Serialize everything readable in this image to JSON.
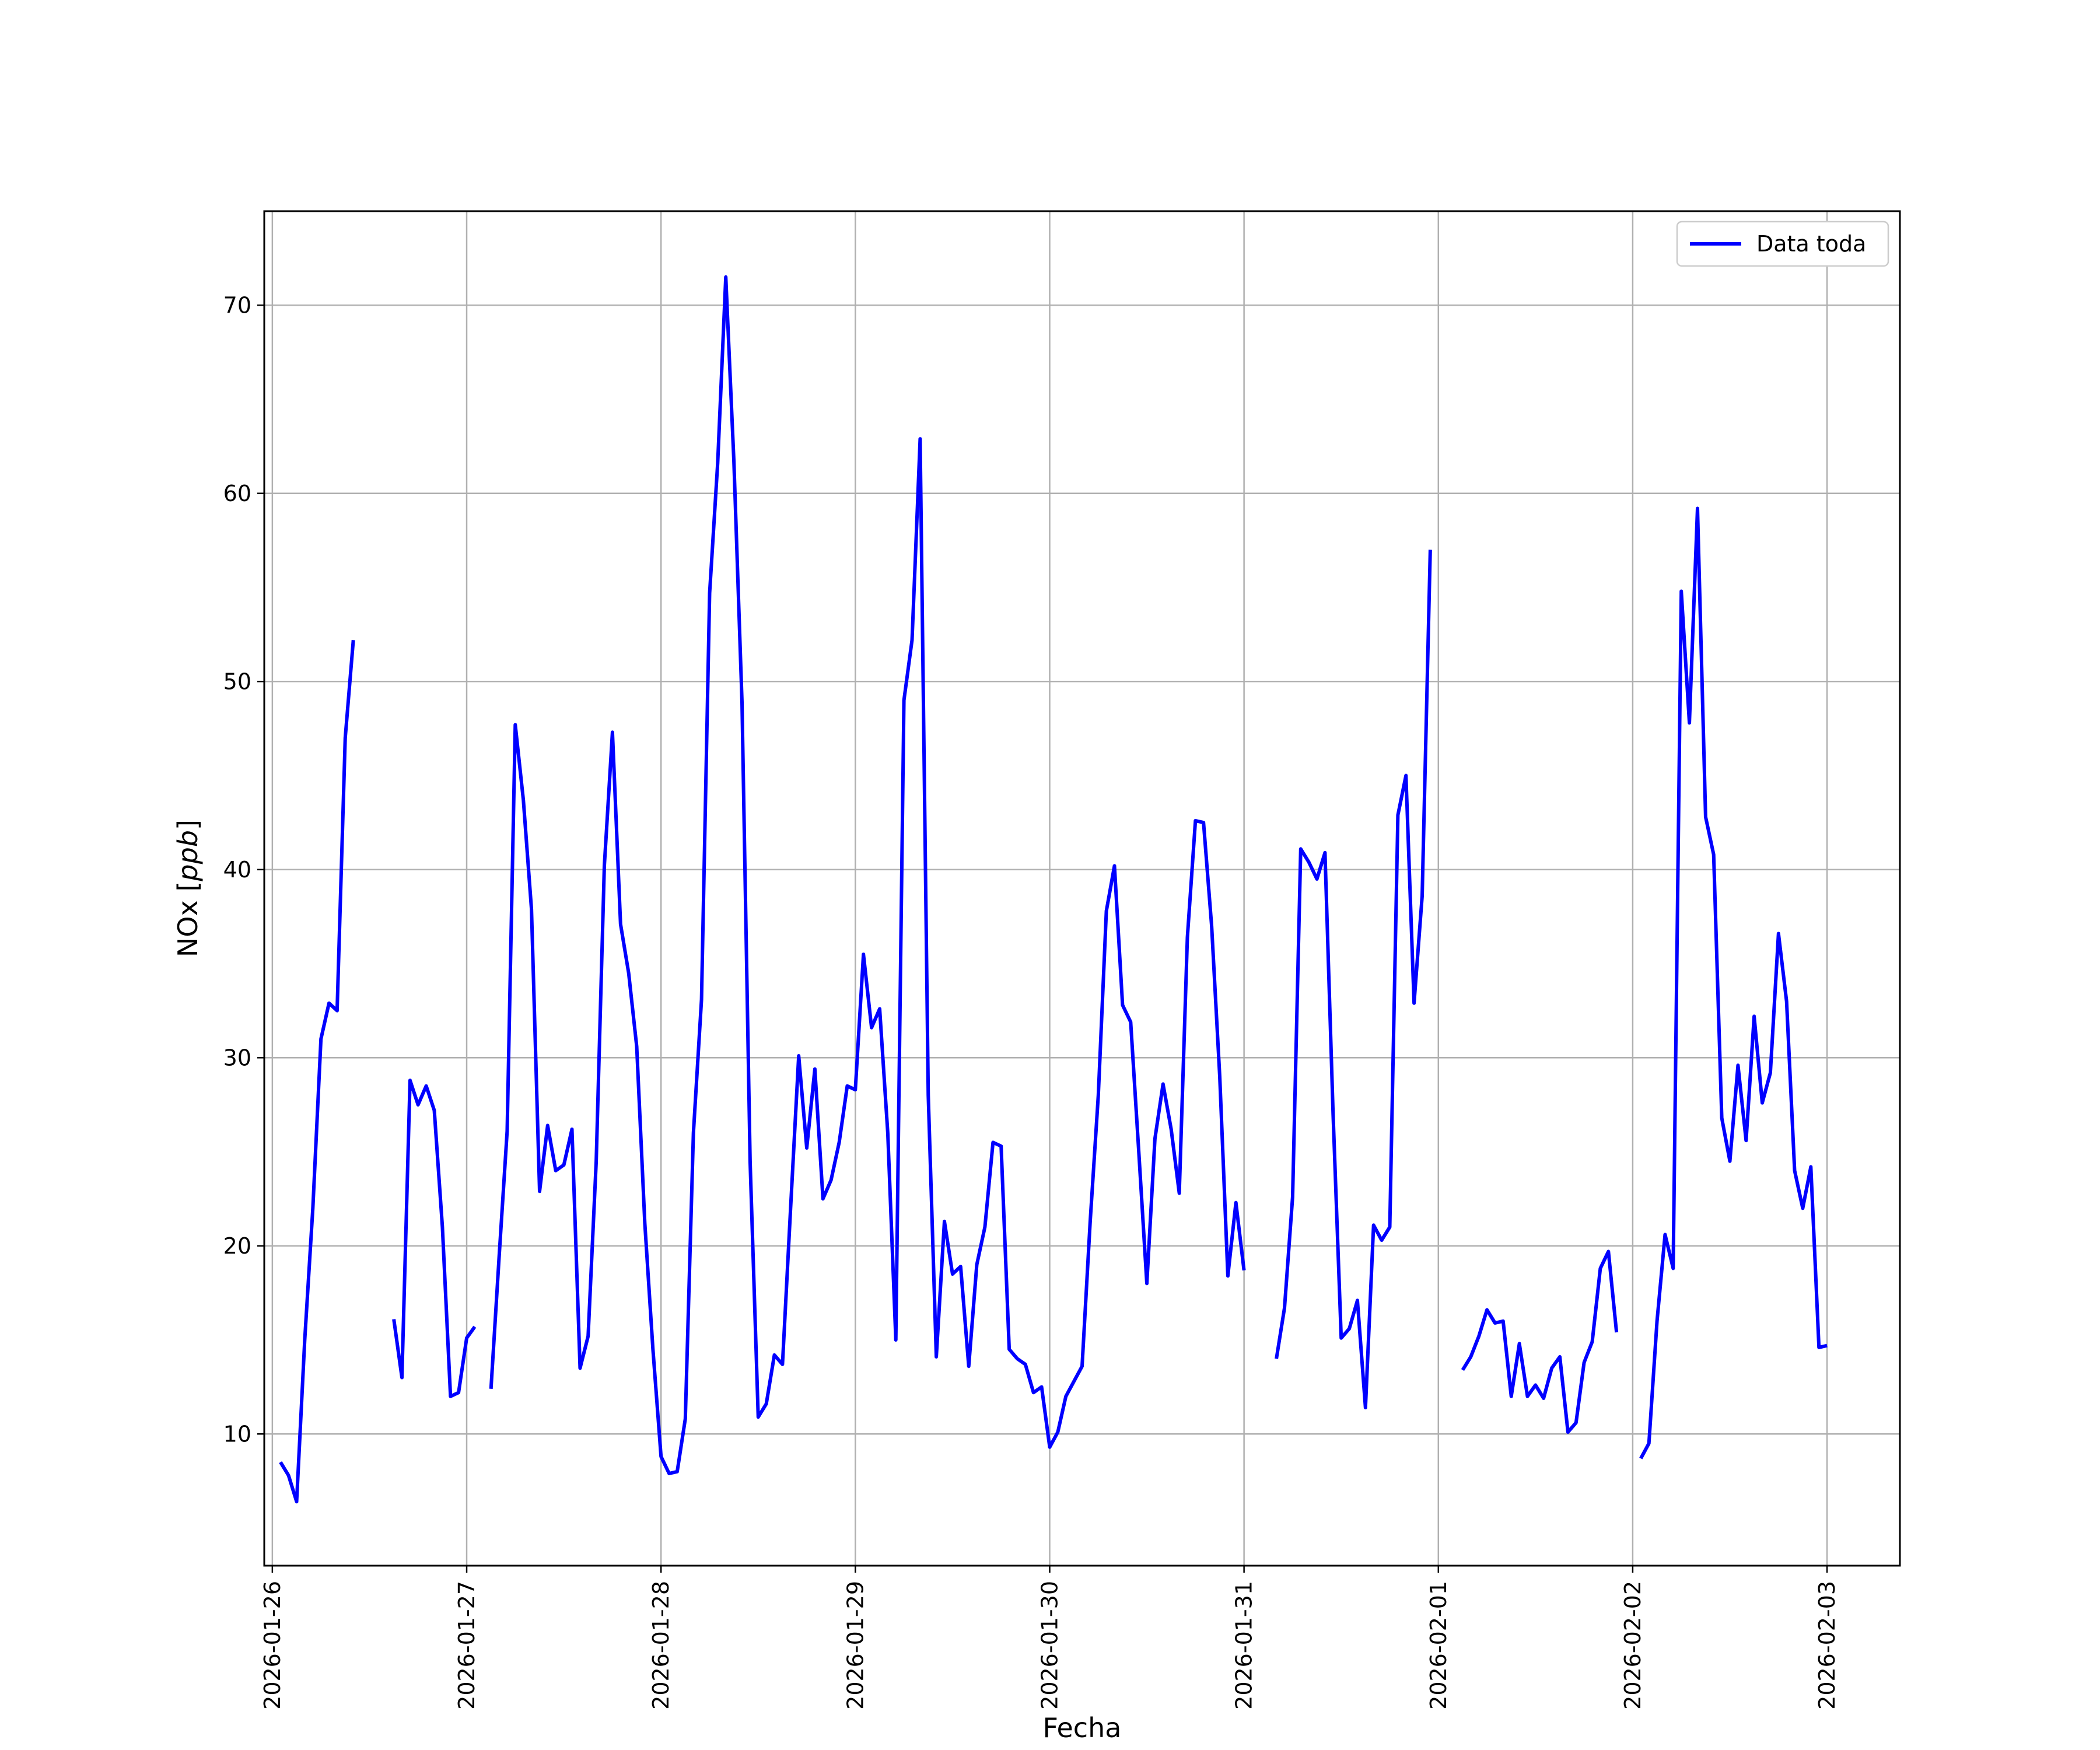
{
  "chart_data": {
    "type": "line",
    "xlabel": "Fecha",
    "ylabel": "NOx [ppb]",
    "ylabel_parts": {
      "main": "NOx [",
      "unit": "ppb",
      "close": "]"
    },
    "xlim": [
      "2026-01-25T23:00",
      "2026-02-03T09:00"
    ],
    "ylim": [
      3,
      75
    ],
    "grid": true,
    "legend_position": "top-right",
    "x_tick_labels": [
      "2026-01-26",
      "2026-01-27",
      "2026-01-28",
      "2026-01-29",
      "2026-01-30",
      "2026-01-31",
      "2026-02-01",
      "2026-02-02",
      "2026-02-03"
    ],
    "y_ticks": [
      10,
      20,
      30,
      40,
      50,
      60,
      70
    ],
    "series": [
      {
        "name": "Data toda",
        "color": "#0000ff",
        "points": [
          [
            "2026-01-26T01:00",
            8.5
          ],
          [
            "2026-01-26T02:00",
            7.8
          ],
          [
            "2026-01-26T03:00",
            6.4
          ],
          [
            "2026-01-26T04:00",
            15.0
          ],
          [
            "2026-01-26T05:00",
            22.0
          ],
          [
            "2026-01-26T06:00",
            31.0
          ],
          [
            "2026-01-26T07:00",
            32.9
          ],
          [
            "2026-01-26T08:00",
            32.5
          ],
          [
            "2026-01-26T09:00",
            47.0
          ],
          [
            "2026-01-26T10:00",
            52.2
          ],
          [
            "2026-01-26T11:00",
            null
          ],
          [
            "2026-01-26T14:00",
            null
          ],
          [
            "2026-01-26T15:00",
            16.1
          ],
          [
            "2026-01-26T16:00",
            13.0
          ],
          [
            "2026-01-26T17:00",
            28.8
          ],
          [
            "2026-01-26T18:00",
            27.5
          ],
          [
            "2026-01-26T19:00",
            28.5
          ],
          [
            "2026-01-26T20:00",
            27.2
          ],
          [
            "2026-01-26T21:00",
            21.0
          ],
          [
            "2026-01-26T22:00",
            12.0
          ],
          [
            "2026-01-26T23:00",
            12.2
          ],
          [
            "2026-01-27T00:00",
            15.1
          ],
          [
            "2026-01-27T01:00",
            15.7
          ],
          [
            "2026-01-27T02:00",
            null
          ],
          [
            "2026-01-27T03:00",
            12.4
          ],
          [
            "2026-01-27T04:00",
            19.4
          ],
          [
            "2026-01-27T05:00",
            26.1
          ],
          [
            "2026-01-27T06:00",
            47.7
          ],
          [
            "2026-01-27T07:00",
            43.7
          ],
          [
            "2026-01-27T08:00",
            37.9
          ],
          [
            "2026-01-27T09:00",
            22.9
          ],
          [
            "2026-01-27T10:00",
            26.4
          ],
          [
            "2026-01-27T11:00",
            24.0
          ],
          [
            "2026-01-27T12:00",
            24.3
          ],
          [
            "2026-01-27T13:00",
            26.2
          ],
          [
            "2026-01-27T14:00",
            13.5
          ],
          [
            "2026-01-27T15:00",
            15.2
          ],
          [
            "2026-01-27T16:00",
            24.5
          ],
          [
            "2026-01-27T17:00",
            40.2
          ],
          [
            "2026-01-27T18:00",
            47.3
          ],
          [
            "2026-01-27T19:00",
            37.1
          ],
          [
            "2026-01-27T20:00",
            34.5
          ],
          [
            "2026-01-27T21:00",
            30.6
          ],
          [
            "2026-01-27T22:00",
            21.2
          ],
          [
            "2026-01-27T23:00",
            14.5
          ],
          [
            "2026-01-28T00:00",
            8.8
          ],
          [
            "2026-01-28T01:00",
            7.9
          ],
          [
            "2026-01-28T02:00",
            8.0
          ],
          [
            "2026-01-28T03:00",
            10.8
          ],
          [
            "2026-01-28T04:00",
            26.0
          ],
          [
            "2026-01-28T05:00",
            33.1
          ],
          [
            "2026-01-28T06:00",
            54.7
          ],
          [
            "2026-01-28T07:00",
            61.6
          ],
          [
            "2026-01-28T08:00",
            71.5
          ],
          [
            "2026-01-28T09:00",
            61.7
          ],
          [
            "2026-01-28T10:00",
            48.9
          ],
          [
            "2026-01-28T11:00",
            24.5
          ],
          [
            "2026-01-28T12:00",
            10.9
          ],
          [
            "2026-01-28T13:00",
            11.6
          ],
          [
            "2026-01-28T14:00",
            14.2
          ],
          [
            "2026-01-28T15:00",
            13.7
          ],
          [
            "2026-01-28T16:00",
            22.0
          ],
          [
            "2026-01-28T17:00",
            30.1
          ],
          [
            "2026-01-28T18:00",
            25.2
          ],
          [
            "2026-01-28T19:00",
            29.4
          ],
          [
            "2026-01-28T20:00",
            22.5
          ],
          [
            "2026-01-28T21:00",
            23.5
          ],
          [
            "2026-01-28T22:00",
            25.5
          ],
          [
            "2026-01-28T23:00",
            28.5
          ],
          [
            "2026-01-29T00:00",
            28.3
          ],
          [
            "2026-01-29T01:00",
            35.5
          ],
          [
            "2026-01-29T02:00",
            31.6
          ],
          [
            "2026-01-29T03:00",
            32.6
          ],
          [
            "2026-01-29T04:00",
            26.0
          ],
          [
            "2026-01-29T05:00",
            15.0
          ],
          [
            "2026-01-29T06:00",
            49.0
          ],
          [
            "2026-01-29T07:00",
            52.2
          ],
          [
            "2026-01-29T08:00",
            62.9
          ],
          [
            "2026-01-29T09:00",
            28.0
          ],
          [
            "2026-01-29T10:00",
            14.1
          ],
          [
            "2026-01-29T11:00",
            21.3
          ],
          [
            "2026-01-29T12:00",
            18.5
          ],
          [
            "2026-01-29T13:00",
            18.9
          ],
          [
            "2026-01-29T14:00",
            13.6
          ],
          [
            "2026-01-29T15:00",
            19.0
          ],
          [
            "2026-01-29T16:00",
            21.0
          ],
          [
            "2026-01-29T17:00",
            25.5
          ],
          [
            "2026-01-29T18:00",
            25.3
          ],
          [
            "2026-01-29T19:00",
            14.5
          ],
          [
            "2026-01-29T20:00",
            14.0
          ],
          [
            "2026-01-29T21:00",
            13.7
          ],
          [
            "2026-01-29T22:00",
            12.2
          ],
          [
            "2026-01-29T23:00",
            12.5
          ],
          [
            "2026-01-30T00:00",
            9.3
          ],
          [
            "2026-01-30T01:00",
            10.1
          ],
          [
            "2026-01-30T02:00",
            12.0
          ],
          [
            "2026-01-30T03:00",
            12.8
          ],
          [
            "2026-01-30T04:00",
            13.6
          ],
          [
            "2026-01-30T05:00",
            21.3
          ],
          [
            "2026-01-30T06:00",
            28.0
          ],
          [
            "2026-01-30T07:00",
            37.8
          ],
          [
            "2026-01-30T08:00",
            40.2
          ],
          [
            "2026-01-30T09:00",
            32.8
          ],
          [
            "2026-01-30T10:00",
            31.9
          ],
          [
            "2026-01-30T11:00",
            25.0
          ],
          [
            "2026-01-30T12:00",
            18.0
          ],
          [
            "2026-01-30T13:00",
            25.7
          ],
          [
            "2026-01-30T14:00",
            28.6
          ],
          [
            "2026-01-30T15:00",
            26.2
          ],
          [
            "2026-01-30T16:00",
            22.8
          ],
          [
            "2026-01-30T17:00",
            36.4
          ],
          [
            "2026-01-30T18:00",
            42.6
          ],
          [
            "2026-01-30T19:00",
            42.5
          ],
          [
            "2026-01-30T20:00",
            37.0
          ],
          [
            "2026-01-30T21:00",
            29.0
          ],
          [
            "2026-01-30T22:00",
            18.4
          ],
          [
            "2026-01-30T23:00",
            22.3
          ],
          [
            "2026-01-31T00:00",
            18.7
          ],
          [
            "2026-01-31T01:00",
            null
          ],
          [
            "2026-01-31T03:00",
            null
          ],
          [
            "2026-01-31T04:00",
            14.0
          ],
          [
            "2026-01-31T05:00",
            16.7
          ],
          [
            "2026-01-31T06:00",
            22.6
          ],
          [
            "2026-01-31T07:00",
            41.1
          ],
          [
            "2026-01-31T08:00",
            40.4
          ],
          [
            "2026-01-31T09:00",
            39.5
          ],
          [
            "2026-01-31T10:00",
            40.9
          ],
          [
            "2026-01-31T11:00",
            27.0
          ],
          [
            "2026-01-31T12:00",
            15.1
          ],
          [
            "2026-01-31T13:00",
            15.6
          ],
          [
            "2026-01-31T14:00",
            17.1
          ],
          [
            "2026-01-31T15:00",
            11.4
          ],
          [
            "2026-01-31T16:00",
            21.1
          ],
          [
            "2026-01-31T17:00",
            20.3
          ],
          [
            "2026-01-31T18:00",
            21.0
          ],
          [
            "2026-01-31T19:00",
            42.9
          ],
          [
            "2026-01-31T20:00",
            45.0
          ],
          [
            "2026-01-31T21:00",
            32.9
          ],
          [
            "2026-01-31T22:00",
            38.6
          ],
          [
            "2026-01-31T23:00",
            57.0
          ],
          [
            "2026-02-01T00:00",
            null
          ],
          [
            "2026-02-01T02:00",
            null
          ],
          [
            "2026-02-01T03:00",
            13.4
          ],
          [
            "2026-02-01T04:00",
            14.1
          ],
          [
            "2026-02-01T05:00",
            15.2
          ],
          [
            "2026-02-01T06:00",
            16.6
          ],
          [
            "2026-02-01T07:00",
            15.9
          ],
          [
            "2026-02-01T08:00",
            16.0
          ],
          [
            "2026-02-01T09:00",
            12.0
          ],
          [
            "2026-02-01T10:00",
            14.8
          ],
          [
            "2026-02-01T11:00",
            12.0
          ],
          [
            "2026-02-01T12:00",
            12.6
          ],
          [
            "2026-02-01T13:00",
            11.9
          ],
          [
            "2026-02-01T14:00",
            13.5
          ],
          [
            "2026-02-01T15:00",
            14.1
          ],
          [
            "2026-02-01T16:00",
            10.1
          ],
          [
            "2026-02-01T17:00",
            10.6
          ],
          [
            "2026-02-01T18:00",
            13.8
          ],
          [
            "2026-02-01T19:00",
            14.9
          ],
          [
            "2026-02-01T20:00",
            18.8
          ],
          [
            "2026-02-01T21:00",
            19.7
          ],
          [
            "2026-02-01T22:00",
            15.4
          ],
          [
            "2026-02-01T23:00",
            null
          ],
          [
            "2026-02-02T00:00",
            null
          ],
          [
            "2026-02-02T01:00",
            8.7
          ],
          [
            "2026-02-02T02:00",
            9.5
          ],
          [
            "2026-02-02T03:00",
            16.0
          ],
          [
            "2026-02-02T04:00",
            20.6
          ],
          [
            "2026-02-02T05:00",
            18.8
          ],
          [
            "2026-02-02T06:00",
            54.8
          ],
          [
            "2026-02-02T07:00",
            47.8
          ],
          [
            "2026-02-02T08:00",
            59.2
          ],
          [
            "2026-02-02T09:00",
            42.8
          ],
          [
            "2026-02-02T10:00",
            40.8
          ],
          [
            "2026-02-02T11:00",
            26.8
          ],
          [
            "2026-02-02T12:00",
            24.5
          ],
          [
            "2026-02-02T13:00",
            29.6
          ],
          [
            "2026-02-02T14:00",
            25.6
          ],
          [
            "2026-02-02T15:00",
            32.2
          ],
          [
            "2026-02-02T16:00",
            27.6
          ],
          [
            "2026-02-02T17:00",
            29.2
          ],
          [
            "2026-02-02T18:00",
            36.6
          ],
          [
            "2026-02-02T19:00",
            33.0
          ],
          [
            "2026-02-02T20:00",
            24.0
          ],
          [
            "2026-02-02T21:00",
            22.0
          ],
          [
            "2026-02-02T22:00",
            24.2
          ],
          [
            "2026-02-02T23:00",
            14.6
          ],
          [
            "2026-02-03T00:00",
            14.7
          ]
        ]
      }
    ]
  }
}
